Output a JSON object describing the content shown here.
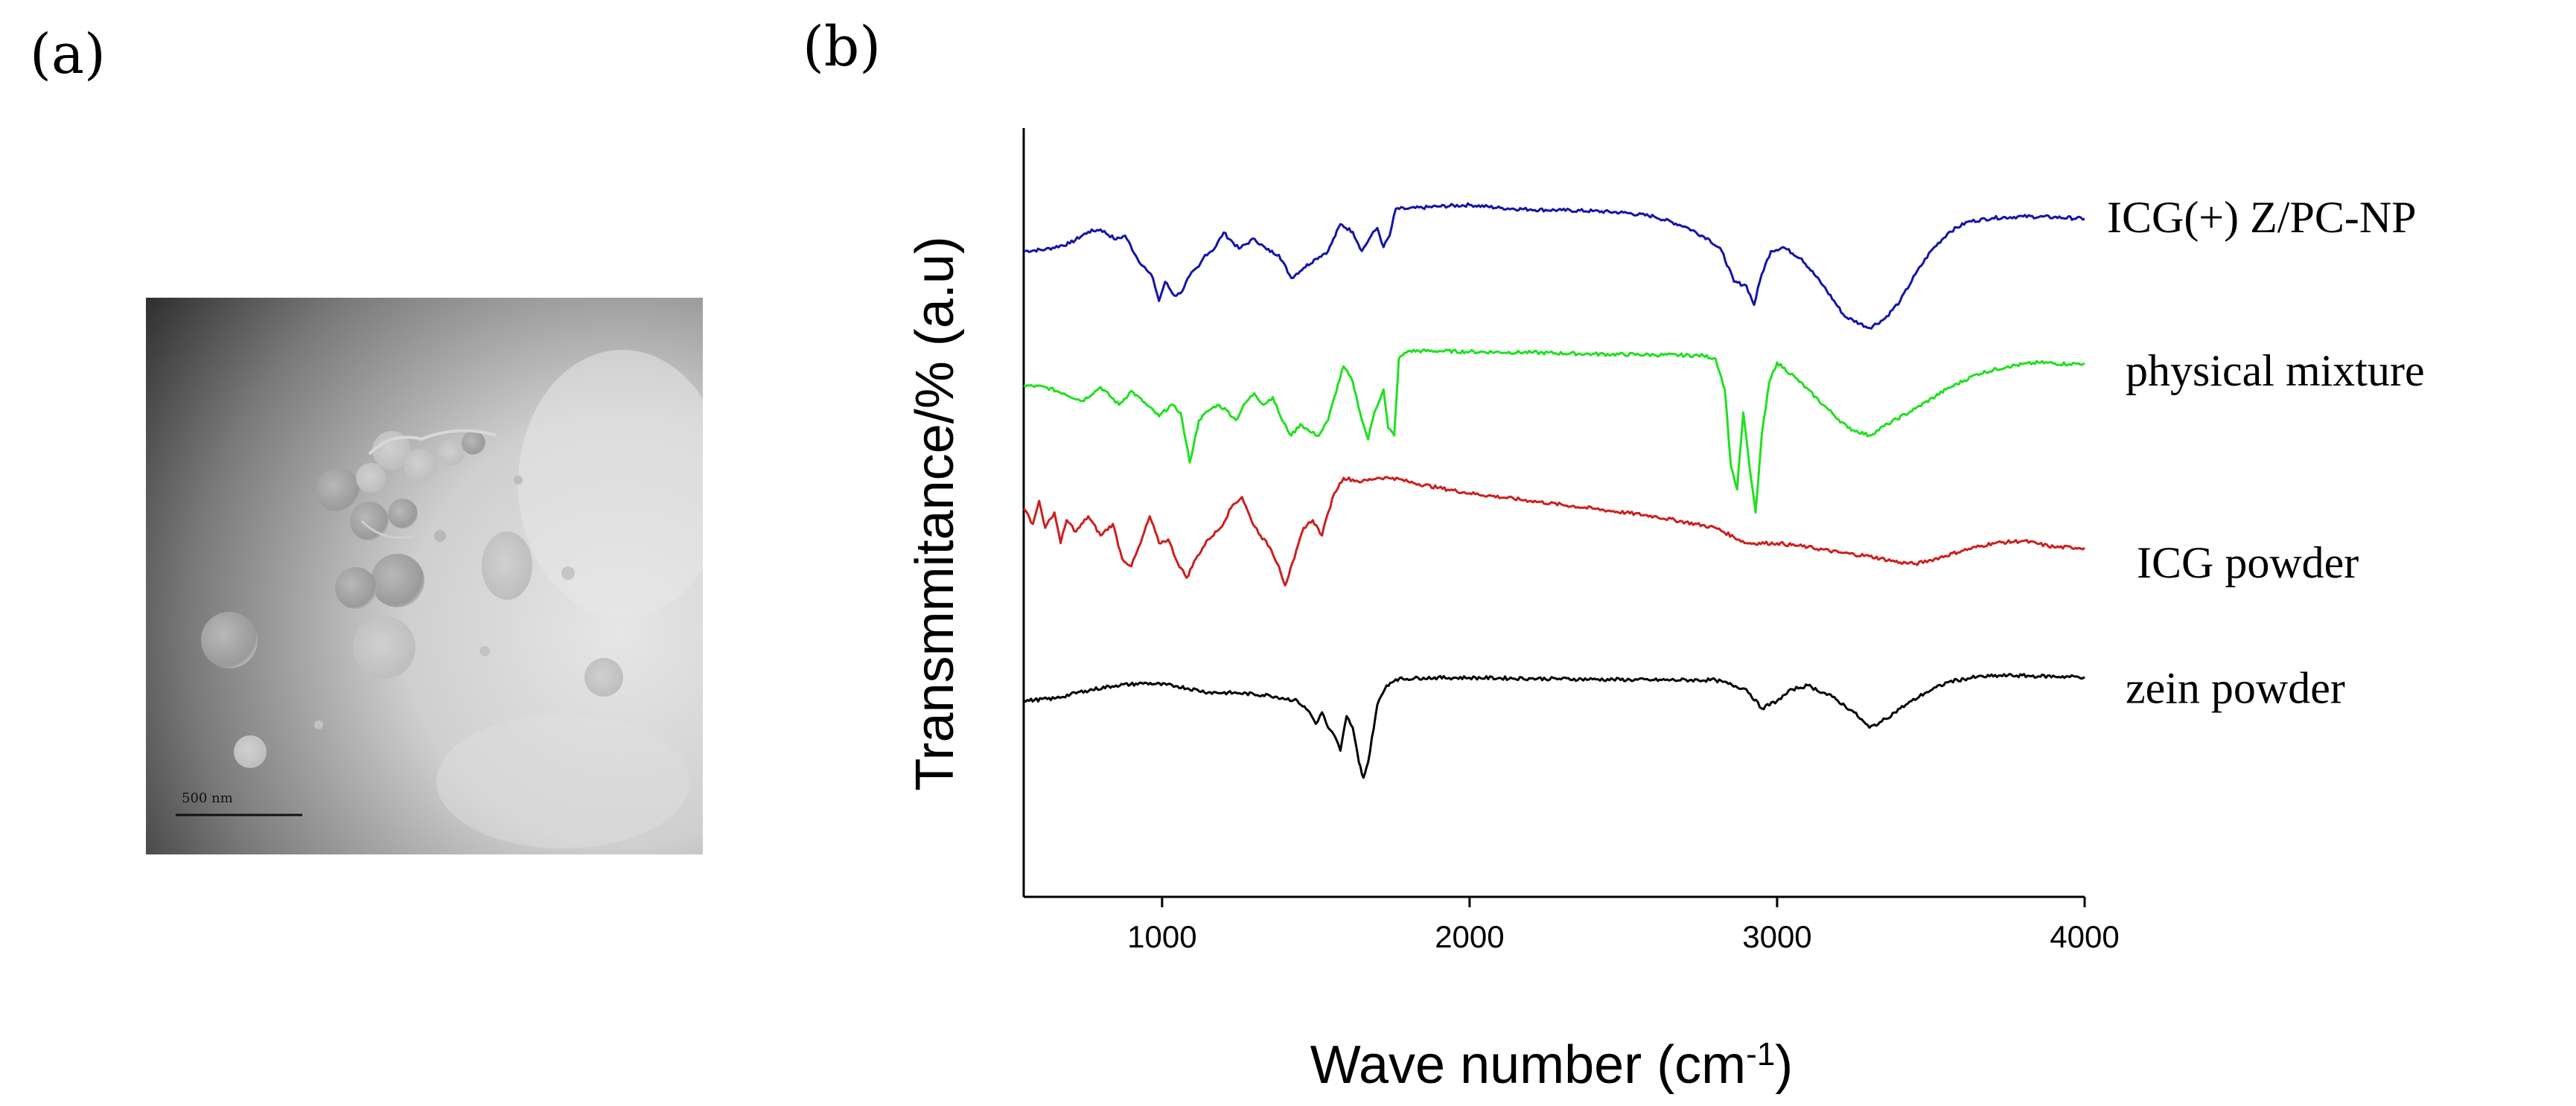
{
  "panels": {
    "a_label": "(a)",
    "b_label": "(b)"
  },
  "tem": {
    "scale_bar_text": "500 nm"
  },
  "chart_data": {
    "type": "line",
    "xlabel_main": "Wave number (cm",
    "xlabel_sup": "-1",
    "xlabel_end": ")",
    "ylabel": "Transmmitance/% (a.u)",
    "xlim": [
      550,
      4000
    ],
    "ylim": [
      0,
      100
    ],
    "xticks": [
      1000,
      2000,
      3000,
      4000
    ],
    "series": [
      {
        "name": "ICG(+) Z/PC-NP",
        "color": "#1414a8",
        "points": [
          [
            550,
            84
          ],
          [
            620,
            84.2
          ],
          [
            700,
            85
          ],
          [
            760,
            86.5
          ],
          [
            800,
            86.8
          ],
          [
            850,
            85.5
          ],
          [
            880,
            86
          ],
          [
            920,
            83
          ],
          [
            950,
            81.5
          ],
          [
            970,
            80.5
          ],
          [
            990,
            77.5
          ],
          [
            1010,
            80
          ],
          [
            1040,
            78.2
          ],
          [
            1060,
            78.5
          ],
          [
            1090,
            80.8
          ],
          [
            1120,
            82
          ],
          [
            1140,
            83.5
          ],
          [
            1170,
            84.3
          ],
          [
            1200,
            86.4
          ],
          [
            1250,
            84.3
          ],
          [
            1300,
            85.6
          ],
          [
            1340,
            84.2
          ],
          [
            1380,
            83.5
          ],
          [
            1420,
            80.5
          ],
          [
            1460,
            81.8
          ],
          [
            1500,
            83
          ],
          [
            1540,
            84
          ],
          [
            1580,
            87.5
          ],
          [
            1620,
            86.5
          ],
          [
            1650,
            84
          ],
          [
            1680,
            86
          ],
          [
            1700,
            87
          ],
          [
            1720,
            84.5
          ],
          [
            1740,
            86
          ],
          [
            1760,
            89.5
          ],
          [
            1800,
            89.5
          ],
          [
            1900,
            89.8
          ],
          [
            2000,
            90
          ],
          [
            2100,
            89.6
          ],
          [
            2200,
            89.4
          ],
          [
            2300,
            89.3
          ],
          [
            2400,
            89.2
          ],
          [
            2500,
            89
          ],
          [
            2600,
            88.5
          ],
          [
            2700,
            87.2
          ],
          [
            2780,
            85.5
          ],
          [
            2820,
            84
          ],
          [
            2860,
            80
          ],
          [
            2900,
            79.5
          ],
          [
            2925,
            77
          ],
          [
            2950,
            81
          ],
          [
            2980,
            84
          ],
          [
            3020,
            84.5
          ],
          [
            3080,
            83
          ],
          [
            3150,
            79.5
          ],
          [
            3220,
            75.5
          ],
          [
            3300,
            74
          ],
          [
            3350,
            75.2
          ],
          [
            3400,
            77.5
          ],
          [
            3450,
            81
          ],
          [
            3500,
            84
          ],
          [
            3560,
            86.5
          ],
          [
            3620,
            87.8
          ],
          [
            3700,
            88.3
          ],
          [
            3800,
            88.5
          ],
          [
            3900,
            88.4
          ],
          [
            4000,
            88.2
          ]
        ]
      },
      {
        "name": "physical mixture",
        "color": "#20e020",
        "points": [
          [
            550,
            66.5
          ],
          [
            620,
            66.3
          ],
          [
            680,
            65.5
          ],
          [
            740,
            64.5
          ],
          [
            800,
            66.3
          ],
          [
            860,
            64
          ],
          [
            900,
            65.8
          ],
          [
            950,
            64
          ],
          [
            990,
            62.5
          ],
          [
            1030,
            64
          ],
          [
            1060,
            63
          ],
          [
            1090,
            56.5
          ],
          [
            1120,
            62
          ],
          [
            1150,
            63.2
          ],
          [
            1180,
            64
          ],
          [
            1210,
            63.3
          ],
          [
            1240,
            62
          ],
          [
            1270,
            64.2
          ],
          [
            1300,
            65.5
          ],
          [
            1330,
            64
          ],
          [
            1360,
            65
          ],
          [
            1390,
            62
          ],
          [
            1420,
            60
          ],
          [
            1450,
            61.5
          ],
          [
            1480,
            60.5
          ],
          [
            1510,
            60
          ],
          [
            1540,
            62
          ],
          [
            1560,
            65
          ],
          [
            1590,
            69
          ],
          [
            1620,
            67
          ],
          [
            1650,
            62
          ],
          [
            1670,
            59.5
          ],
          [
            1690,
            63
          ],
          [
            1720,
            66
          ],
          [
            1735,
            61
          ],
          [
            1755,
            60
          ],
          [
            1770,
            70
          ],
          [
            1800,
            71
          ],
          [
            1900,
            71
          ],
          [
            2000,
            70.9
          ],
          [
            2200,
            70.8
          ],
          [
            2400,
            70.6
          ],
          [
            2600,
            70.5
          ],
          [
            2760,
            70.4
          ],
          [
            2800,
            70
          ],
          [
            2830,
            66
          ],
          [
            2850,
            56
          ],
          [
            2870,
            53
          ],
          [
            2890,
            63
          ],
          [
            2910,
            56
          ],
          [
            2930,
            50
          ],
          [
            2950,
            60
          ],
          [
            2975,
            67
          ],
          [
            3000,
            69.5
          ],
          [
            3060,
            67.5
          ],
          [
            3150,
            64
          ],
          [
            3230,
            61
          ],
          [
            3300,
            60
          ],
          [
            3360,
            61.5
          ],
          [
            3450,
            63.5
          ],
          [
            3550,
            66
          ],
          [
            3650,
            68
          ],
          [
            3750,
            69
          ],
          [
            3850,
            69.5
          ],
          [
            3950,
            69.3
          ],
          [
            4000,
            69.4
          ]
        ]
      },
      {
        "name": "ICG powder",
        "color": "#cc1f1f",
        "points": [
          [
            550,
            50.5
          ],
          [
            580,
            48.5
          ],
          [
            600,
            51.5
          ],
          [
            620,
            48
          ],
          [
            650,
            50
          ],
          [
            670,
            46
          ],
          [
            690,
            49
          ],
          [
            720,
            47.5
          ],
          [
            760,
            49.5
          ],
          [
            800,
            47
          ],
          [
            840,
            48.5
          ],
          [
            870,
            44
          ],
          [
            900,
            43
          ],
          [
            930,
            46
          ],
          [
            960,
            49.5
          ],
          [
            990,
            46
          ],
          [
            1020,
            46.5
          ],
          [
            1050,
            43.5
          ],
          [
            1080,
            41.5
          ],
          [
            1110,
            44
          ],
          [
            1150,
            46.5
          ],
          [
            1190,
            48
          ],
          [
            1230,
            51
          ],
          [
            1260,
            52
          ],
          [
            1290,
            49
          ],
          [
            1320,
            47
          ],
          [
            1350,
            45.5
          ],
          [
            1380,
            43
          ],
          [
            1400,
            40.5
          ],
          [
            1430,
            44
          ],
          [
            1460,
            48
          ],
          [
            1490,
            49
          ],
          [
            1520,
            47
          ],
          [
            1540,
            50
          ],
          [
            1560,
            52.5
          ],
          [
            1590,
            54.5
          ],
          [
            1650,
            54
          ],
          [
            1700,
            54.5
          ],
          [
            1750,
            54.5
          ],
          [
            1800,
            54
          ],
          [
            1900,
            53.2
          ],
          [
            2000,
            52.5
          ],
          [
            2200,
            51.5
          ],
          [
            2400,
            50.5
          ],
          [
            2600,
            49.5
          ],
          [
            2800,
            48
          ],
          [
            2900,
            46
          ],
          [
            3000,
            46
          ],
          [
            3100,
            45.5
          ],
          [
            3200,
            44.8
          ],
          [
            3300,
            44.3
          ],
          [
            3400,
            43.5
          ],
          [
            3450,
            43.3
          ],
          [
            3500,
            43.8
          ],
          [
            3600,
            45
          ],
          [
            3700,
            46
          ],
          [
            3800,
            46.3
          ],
          [
            3900,
            45.5
          ],
          [
            4000,
            45.4
          ]
        ]
      },
      {
        "name": "zein powder",
        "color": "#000000",
        "points": [
          [
            550,
            25.5
          ],
          [
            650,
            25.8
          ],
          [
            750,
            26.8
          ],
          [
            850,
            27.5
          ],
          [
            950,
            27.8
          ],
          [
            1050,
            27.4
          ],
          [
            1150,
            26.6
          ],
          [
            1250,
            26.5
          ],
          [
            1350,
            26.2
          ],
          [
            1440,
            25.5
          ],
          [
            1480,
            24
          ],
          [
            1500,
            22.5
          ],
          [
            1520,
            24
          ],
          [
            1540,
            22
          ],
          [
            1560,
            21
          ],
          [
            1580,
            19
          ],
          [
            1600,
            23.5
          ],
          [
            1620,
            22
          ],
          [
            1640,
            17.5
          ],
          [
            1655,
            15.5
          ],
          [
            1670,
            17.5
          ],
          [
            1700,
            25
          ],
          [
            1730,
            27.5
          ],
          [
            1760,
            28.3
          ],
          [
            1850,
            28.5
          ],
          [
            2000,
            28.5
          ],
          [
            2200,
            28.4
          ],
          [
            2400,
            28.3
          ],
          [
            2600,
            28.2
          ],
          [
            2800,
            28.2
          ],
          [
            2900,
            27
          ],
          [
            2950,
            24.5
          ],
          [
            3000,
            25.5
          ],
          [
            3050,
            27
          ],
          [
            3100,
            27.5
          ],
          [
            3180,
            26
          ],
          [
            3250,
            24
          ],
          [
            3300,
            22
          ],
          [
            3340,
            22.8
          ],
          [
            3400,
            24.5
          ],
          [
            3480,
            26.5
          ],
          [
            3560,
            28
          ],
          [
            3650,
            28.6
          ],
          [
            3750,
            28.8
          ],
          [
            3850,
            28.7
          ],
          [
            4000,
            28.6
          ]
        ]
      }
    ]
  }
}
